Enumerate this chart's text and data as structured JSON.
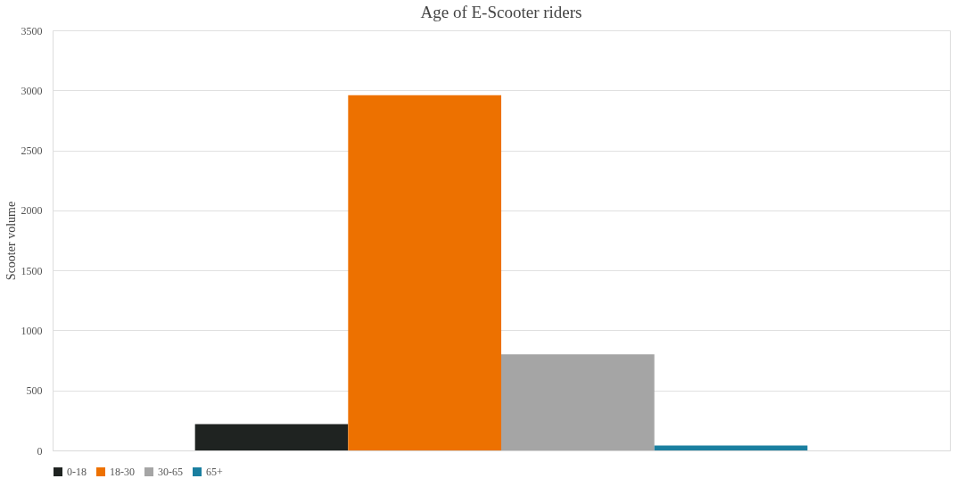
{
  "chart_data": {
    "type": "bar",
    "title": "Age of E-Scooter riders",
    "ylabel": "Scooter volume",
    "categories": [
      null
    ],
    "series": [
      {
        "name": "0-18",
        "color": "#1f2321",
        "values": [
          220
        ]
      },
      {
        "name": "18-30",
        "color": "#ed7100",
        "values": [
          2960
        ]
      },
      {
        "name": "30-65",
        "color": "#a5a5a5",
        "values": [
          800
        ]
      },
      {
        "name": "65+",
        "color": "#1a7fa0",
        "values": [
          40
        ]
      }
    ],
    "ylim": [
      0,
      3500
    ],
    "yticks": [
      0,
      500,
      1000,
      1500,
      2000,
      2500,
      3000,
      3500
    ],
    "grid": "y",
    "legend": "bottom",
    "tick_labels": "y"
  }
}
